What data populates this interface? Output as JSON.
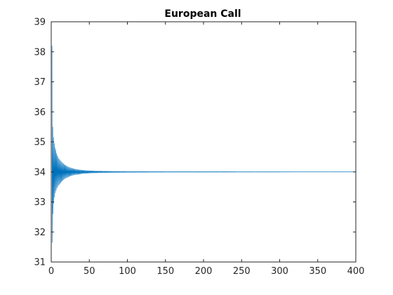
{
  "chart_data": {
    "type": "line",
    "title": "European Call",
    "xlabel": "",
    "ylabel": "",
    "xlim": [
      0,
      400
    ],
    "ylim": [
      31,
      39
    ],
    "x_ticks": [
      0,
      50,
      100,
      150,
      200,
      250,
      300,
      350,
      400
    ],
    "y_ticks": [
      31,
      32,
      33,
      34,
      35,
      36,
      37,
      38,
      39
    ],
    "grid": false,
    "series": [
      {
        "color": "#0072BD",
        "converged_value": 34.0,
        "x": [
          1,
          2,
          3,
          4,
          5,
          6,
          7,
          8,
          9,
          10,
          12,
          14,
          16,
          18,
          20,
          25,
          30,
          35,
          40,
          50,
          60,
          80,
          100,
          150,
          200,
          250,
          300,
          350,
          400
        ],
        "y_upper": [
          38.2,
          35.5,
          35.15,
          34.95,
          34.8,
          34.72,
          34.62,
          34.55,
          34.5,
          34.45,
          34.38,
          34.32,
          34.27,
          34.23,
          34.2,
          34.14,
          34.1,
          34.08,
          34.06,
          34.04,
          34.03,
          34.02,
          34.015,
          34.01,
          34.01,
          34.008,
          34.006,
          34.005,
          34.004
        ],
        "y_lower": [
          31.65,
          32.6,
          32.95,
          33.15,
          33.3,
          33.38,
          33.45,
          33.5,
          33.55,
          33.58,
          33.64,
          33.7,
          33.74,
          33.78,
          33.81,
          33.87,
          33.9,
          33.92,
          33.94,
          33.96,
          33.97,
          33.98,
          33.985,
          33.99,
          33.99,
          33.992,
          33.994,
          33.995,
          33.996
        ]
      }
    ]
  }
}
